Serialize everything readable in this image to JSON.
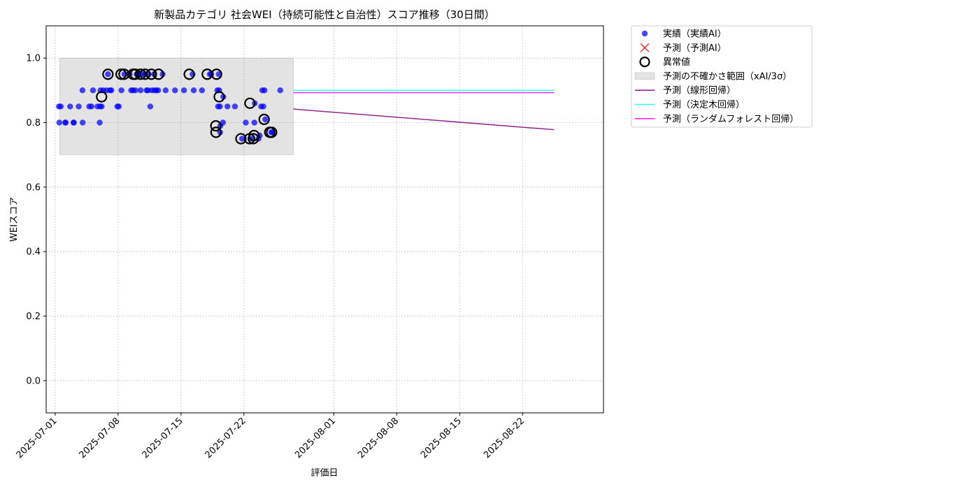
{
  "chart_data": {
    "type": "scatter",
    "title": "新製品カテゴリ 社会WEI（持続可能性と自治性）スコア推移（30日間）",
    "xlabel": "評価日",
    "ylabel": "WEIスコア",
    "xlim": [
      "2025-06-30",
      "2025-08-31"
    ],
    "ylim": [
      -0.1,
      1.1
    ],
    "yticks": [
      0.0,
      0.2,
      0.4,
      0.6,
      0.8,
      1.0
    ],
    "ytick_labels": [
      "0.0",
      "0.2",
      "0.4",
      "0.6",
      "0.8",
      "1.0"
    ],
    "xticks": [
      "2025-07-01",
      "2025-07-08",
      "2025-07-15",
      "2025-07-22",
      "2025-08-01",
      "2025-08-08",
      "2025-08-15",
      "2025-08-22"
    ],
    "grid": true,
    "legend_position": "outside-upper-right",
    "legend": [
      {
        "label": "実績（実績AI）",
        "kind": "dot",
        "color": "#0000ff"
      },
      {
        "label": "予測（予測AI）",
        "kind": "x",
        "color": "#ff0000"
      },
      {
        "label": "異常値",
        "kind": "ring",
        "color": "#000000"
      },
      {
        "label": "予測の不確かさ範囲（xAI/3σ）",
        "kind": "band",
        "color": "#808080"
      },
      {
        "label": "予測（線形回帰）",
        "kind": "line",
        "color": "#800080"
      },
      {
        "label": "予測（決定木回帰）",
        "kind": "line",
        "color": "#00ffff"
      },
      {
        "label": "予測（ランダムフォレスト回帰）",
        "kind": "line",
        "color": "#ff00ff"
      }
    ],
    "uncertainty_band": {
      "x": [
        "2025-07-01 12:00",
        "2025-07-27 12:00"
      ],
      "y": [
        0.7,
        1.0
      ],
      "color": "#808080"
    },
    "actual_series": {
      "name": "実績（実績AI）",
      "color": "#0000ff",
      "points": [
        [
          "2025-07-01 10:00",
          0.85
        ],
        [
          "2025-07-01 11:00",
          0.8
        ],
        [
          "2025-07-01 15:00",
          0.85
        ],
        [
          "2025-07-02 03:00",
          0.8
        ],
        [
          "2025-07-02 04:00",
          0.8
        ],
        [
          "2025-07-02 16:00",
          0.85
        ],
        [
          "2025-07-03 01:00",
          0.8
        ],
        [
          "2025-07-03 02:00",
          0.8
        ],
        [
          "2025-07-03 15:00",
          0.85
        ],
        [
          "2025-07-04 01:00",
          0.9
        ],
        [
          "2025-07-04 01:30",
          0.8
        ],
        [
          "2025-07-04 19:00",
          0.85
        ],
        [
          "2025-07-05 01:00",
          0.85
        ],
        [
          "2025-07-05 05:00",
          0.9
        ],
        [
          "2025-07-05 17:00",
          0.85
        ],
        [
          "2025-07-05 23:00",
          0.8
        ],
        [
          "2025-07-06 00:00",
          0.85
        ],
        [
          "2025-07-06 01:00",
          0.9
        ],
        [
          "2025-07-06 04:00",
          0.85
        ],
        [
          "2025-07-06 08:00",
          0.9
        ],
        [
          "2025-07-06 17:00",
          0.9
        ],
        [
          "2025-07-06 21:00",
          0.95
        ],
        [
          "2025-07-07 02:00",
          0.9
        ],
        [
          "2025-07-07 06:00",
          0.9
        ],
        [
          "2025-07-07 22:00",
          0.85
        ],
        [
          "2025-07-08 02:00",
          0.85
        ],
        [
          "2025-07-08 09:00",
          0.9
        ],
        [
          "2025-07-08 17:00",
          0.95
        ],
        [
          "2025-07-09 04:00",
          0.95
        ],
        [
          "2025-07-09 07:00",
          0.95
        ],
        [
          "2025-07-09 11:00",
          0.9
        ],
        [
          "2025-07-09 16:00",
          0.9
        ],
        [
          "2025-07-09 22:00",
          0.9
        ],
        [
          "2025-07-10 02:00",
          0.95
        ],
        [
          "2025-07-10 03:00",
          0.95
        ],
        [
          "2025-07-10 09:00",
          0.95
        ],
        [
          "2025-07-10 12:00",
          0.9
        ],
        [
          "2025-07-10 18:00",
          0.95
        ],
        [
          "2025-07-11 00:00",
          0.95
        ],
        [
          "2025-07-11 04:00",
          0.9
        ],
        [
          "2025-07-11 08:00",
          0.9
        ],
        [
          "2025-07-11 09:00",
          0.95
        ],
        [
          "2025-07-11 14:00",
          0.85
        ],
        [
          "2025-07-11 18:00",
          0.9
        ],
        [
          "2025-07-12 00:00",
          0.95
        ],
        [
          "2025-07-12 01:00",
          0.9
        ],
        [
          "2025-07-12 06:00",
          0.9
        ],
        [
          "2025-07-12 11:00",
          0.9
        ],
        [
          "2025-07-12 23:00",
          0.95
        ],
        [
          "2025-07-13 07:00",
          0.9
        ],
        [
          "2025-07-14 08:00",
          0.9
        ],
        [
          "2025-07-15 08:00",
          0.9
        ],
        [
          "2025-07-16 07:00",
          0.95
        ],
        [
          "2025-07-16 10:00",
          0.9
        ],
        [
          "2025-07-17 08:00",
          0.9
        ],
        [
          "2025-07-18 05:00",
          0.95
        ],
        [
          "2025-07-18 09:00",
          0.95
        ],
        [
          "2025-07-19 01:00",
          0.9
        ],
        [
          "2025-07-19 03:00",
          0.85
        ],
        [
          "2025-07-19 05:00",
          0.95
        ],
        [
          "2025-07-19 06:00",
          0.9
        ],
        [
          "2025-07-19 08:00",
          0.85
        ],
        [
          "2025-07-19 08:30",
          0.77
        ],
        [
          "2025-07-19 09:00",
          0.79
        ],
        [
          "2025-07-19 16:00",
          0.8
        ],
        [
          "2025-07-19 17:00",
          0.88
        ],
        [
          "2025-07-20 04:00",
          0.85
        ],
        [
          "2025-07-21 00:00",
          0.85
        ],
        [
          "2025-07-21 19:00",
          0.75
        ],
        [
          "2025-07-22 05:00",
          0.8
        ],
        [
          "2025-07-22 20:00",
          0.75
        ],
        [
          "2025-07-23 04:00",
          0.8
        ],
        [
          "2025-07-23 05:00",
          0.86
        ],
        [
          "2025-07-23 15:00",
          0.75
        ],
        [
          "2025-07-23 18:00",
          0.76
        ],
        [
          "2025-07-23 22:00",
          0.85
        ],
        [
          "2025-07-24 01:00",
          0.9
        ],
        [
          "2025-07-24 04:00",
          0.85
        ],
        [
          "2025-07-24 07:00",
          0.9
        ],
        [
          "2025-07-24 09:00",
          0.81
        ],
        [
          "2025-07-25 01:00",
          0.77
        ],
        [
          "2025-07-25 04:00",
          0.77
        ],
        [
          "2025-07-26 01:00",
          0.9
        ]
      ]
    },
    "anomalies": {
      "name": "異常値",
      "points": [
        [
          "2025-07-06 04:00",
          0.88
        ],
        [
          "2025-07-06 21:00",
          0.95
        ],
        [
          "2025-07-08 08:00",
          0.95
        ],
        [
          "2025-07-08 16:00",
          0.95
        ],
        [
          "2025-07-09 16:00",
          0.95
        ],
        [
          "2025-07-09 22:00",
          0.95
        ],
        [
          "2025-07-10 12:00",
          0.95
        ],
        [
          "2025-07-11 00:00",
          0.95
        ],
        [
          "2025-07-11 17:00",
          0.95
        ],
        [
          "2025-07-12 12:00",
          0.95
        ],
        [
          "2025-07-15 22:00",
          0.95
        ],
        [
          "2025-07-17 22:00",
          0.95
        ],
        [
          "2025-07-18 23:00",
          0.95
        ],
        [
          "2025-07-18 21:00",
          0.79
        ],
        [
          "2025-07-18 21:30",
          0.77
        ],
        [
          "2025-07-19 06:00",
          0.88
        ],
        [
          "2025-07-21 16:00",
          0.75
        ],
        [
          "2025-07-22 16:00",
          0.86
        ],
        [
          "2025-07-22 15:00",
          0.75
        ],
        [
          "2025-07-23 01:00",
          0.75
        ],
        [
          "2025-07-23 03:00",
          0.76
        ],
        [
          "2025-07-24 06:00",
          0.81
        ],
        [
          "2025-07-24 21:00",
          0.77
        ],
        [
          "2025-07-25 02:00",
          0.77
        ]
      ]
    },
    "forecast_lines": [
      {
        "name": "予測（線形回帰）",
        "color": "#800080",
        "x": [
          "2025-07-27 12:00",
          "2025-08-25 12:00"
        ],
        "y": [
          0.842,
          0.778
        ]
      },
      {
        "name": "予測（決定木回帰）",
        "color": "#00ffff",
        "x": [
          "2025-07-27 12:00",
          "2025-08-25 12:00"
        ],
        "y": [
          0.9,
          0.9
        ]
      },
      {
        "name": "予測（ランダムフォレスト回帰）",
        "color": "#ff00ff",
        "x": [
          "2025-07-27 12:00",
          "2025-08-25 12:00"
        ],
        "y": [
          0.893,
          0.893
        ]
      }
    ]
  }
}
